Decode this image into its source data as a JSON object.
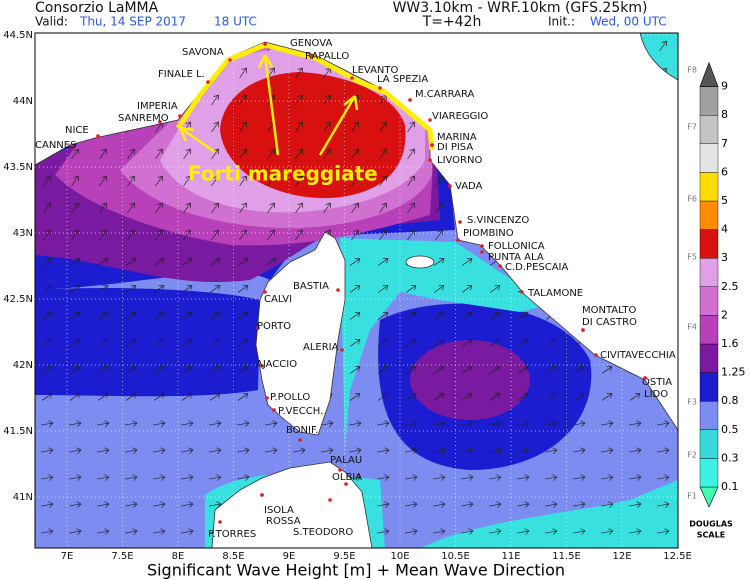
{
  "header": {
    "title": "Consorzio LaMMA",
    "valid_label": "Valid:",
    "valid_date": "Thu, 14 SEP 2017",
    "valid_hour": "18 UTC",
    "model": "WW3.10km - WRF.10km (GFS.25km)",
    "lead_time": "T=+42h",
    "init_label": "Init.:",
    "init_value": "Wed, 00 UTC"
  },
  "map": {
    "lat_labels": [
      "44.5N",
      "44N",
      "43.5N",
      "43N",
      "42.5N",
      "42N",
      "41.5N",
      "41N"
    ],
    "lon_labels": [
      "7E",
      "7.5E",
      "8E",
      "8.5E",
      "9E",
      "9.5E",
      "10E",
      "10.5E",
      "11E",
      "11.5E",
      "12E",
      "12.5E"
    ],
    "cities": [
      "SAVONA",
      "GENOVA",
      "RAPALLO",
      "FINALE L.",
      "LEVANTO",
      "LA SPEZIA",
      "IMPERIA",
      "SANREMO",
      "M.CARRARA",
      "NICE",
      "VIAREGGIO",
      "CANNES",
      "MARINA",
      "DI PISA",
      "LIVORNO",
      "VADA",
      "S.VINCENZO",
      "PIOMBINO",
      "FOLLONICA",
      "PUNTA ALA",
      "C.D.PESCAIA",
      "TALAMONE",
      "MONTALTO",
      "DI CASTRO",
      "CIVITAVECCHIA",
      "OSTIA",
      "LIDO",
      "BASTIA",
      "CALVI",
      "PORTO",
      "ALERIA",
      "AJACCIO",
      "P.POLLO",
      "P.VECCH.",
      "BONIF.",
      "PALAU",
      "OLBIA",
      "ISOLA",
      "ROSSA",
      "S.TEODORO",
      "P.TORRES"
    ],
    "annotation": "Forti mareggiate"
  },
  "colorbar": {
    "levels": [
      "0.1",
      "0.3",
      "0.5",
      "0.8",
      "1.25",
      "1.6",
      "2",
      "2.5",
      "3",
      "4",
      "5",
      "6",
      "7",
      "8",
      "9"
    ],
    "force_labels": [
      "F1",
      "F2",
      "F3",
      "F4",
      "F5",
      "F6",
      "F7",
      "F8"
    ],
    "scale_label": [
      "DOUGLAS",
      "SCALE"
    ]
  },
  "footer": "Significant Wave Height [m] + Mean Wave Direction"
}
